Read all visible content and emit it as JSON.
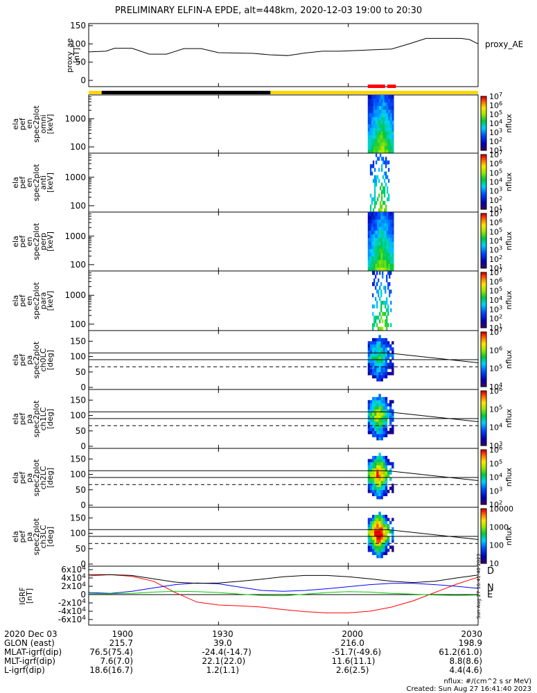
{
  "title": "PRELIMINARY ELFIN-A EPDE, alt=448km, 2020-12-03 19:00 to 20:30",
  "colors": {
    "axis": "#000000",
    "sun_bar": "#ffd700",
    "shadow_bar": "#000000",
    "science_marker": "#ff0000",
    "igrf_d": "#ff0000",
    "igrf_n": "#0000ff",
    "igrf_e": "#00cc00",
    "igrf_total": "#000000"
  },
  "time_ticks": [
    "1900",
    "1930",
    "2000",
    "2030"
  ],
  "orbit_table": {
    "rows": [
      {
        "label": "2020 Dec 03",
        "values": [
          "1900",
          "1930",
          "2000",
          "2030"
        ]
      },
      {
        "label": "GLON (east)",
        "values": [
          "215.7",
          "39.0",
          "216.0",
          "198.9"
        ]
      },
      {
        "label": "MLAT-igrf(dip)",
        "values": [
          "76.5(75.4)",
          "-24.4(-14.7)",
          "-51.7(-49.6)",
          "61.2(61.0)"
        ]
      },
      {
        "label": "MLT-igrf(dip)",
        "values": [
          "7.6(7.0)",
          "22.1(22.0)",
          "11.6(11.1)",
          "8.8(8.6)"
        ]
      },
      {
        "label": "L-igrf(dip)",
        "values": [
          "18.6(16.7)",
          "1.2(1.1)",
          "2.6(2.5)",
          "4.4(4.6)"
        ]
      }
    ]
  },
  "footer": {
    "units": "nflux: #/(cm^2 s sr MeV)",
    "created": "Created: Sun Aug 27 16:41:40 2023"
  },
  "side_stamp": "Sun Aug 27 16:41:40 2023",
  "chart_data": [
    {
      "type": "line",
      "panel": "proxy_ae",
      "ylabel": "proxy_ae [nT]",
      "legend": "proxy_AE",
      "ylim": [
        0,
        150
      ],
      "yticks": [
        "0",
        "50",
        "100",
        "150"
      ],
      "x_minutes": [
        0,
        4,
        6,
        10,
        14,
        18,
        22,
        26,
        30,
        34,
        38,
        42,
        46,
        50,
        54,
        58,
        62,
        66,
        70,
        74,
        78,
        82,
        86,
        88,
        90
      ],
      "values": [
        78,
        80,
        88,
        88,
        72,
        72,
        87,
        87,
        76,
        75,
        74,
        70,
        68,
        75,
        80,
        80,
        82,
        84,
        86,
        100,
        115,
        115,
        115,
        112,
        100
      ]
    },
    {
      "type": "heatmap",
      "panel": "spec2plot_omni",
      "ylabel": "ela pef en spec2plot omni [keV]",
      "y_scale": "log",
      "yticks": [
        "100",
        "1000"
      ],
      "colorbar": {
        "label": "nflux",
        "ticks": [
          "10^1",
          "10^2",
          "10^3",
          "10^4",
          "10^5",
          "10^6",
          "10^7"
        ]
      },
      "data_interval_minutes": [
        64.5,
        70.5
      ]
    },
    {
      "type": "heatmap",
      "panel": "spec2plot_anti",
      "ylabel": "ela pef en spec2plot anti [keV]",
      "y_scale": "log",
      "yticks": [
        "100",
        "1000"
      ],
      "colorbar": {
        "label": "nflux",
        "ticks": [
          "10^1",
          "10^2",
          "10^3",
          "10^4",
          "10^5",
          "10^6",
          "10^7"
        ]
      },
      "data_interval_minutes": [
        65.0,
        69.5
      ]
    },
    {
      "type": "heatmap",
      "panel": "spec2plot_perp",
      "ylabel": "ela pef en spec2plot perp [keV]",
      "y_scale": "log",
      "yticks": [
        "100",
        "1000"
      ],
      "colorbar": {
        "label": "nflux",
        "ticks": [
          "10^1",
          "10^2",
          "10^3",
          "10^4",
          "10^5",
          "10^6",
          "10^7"
        ]
      },
      "data_interval_minutes": [
        64.5,
        70.5
      ]
    },
    {
      "type": "heatmap",
      "panel": "spec2plot_para",
      "ylabel": "ela pef en spec2plot para [keV]",
      "y_scale": "log",
      "yticks": [
        "100",
        "1000"
      ],
      "colorbar": {
        "label": "nflux",
        "ticks": [
          "10^1",
          "10^2",
          "10^3",
          "10^4",
          "10^5",
          "10^6",
          "10^7"
        ]
      },
      "data_interval_minutes": [
        65.5,
        70.0
      ]
    },
    {
      "type": "heatmap",
      "panel": "ch0LC",
      "ylabel": "ela pef pa spec2plot ch0LC [deg]",
      "ylim": [
        0,
        180
      ],
      "yticks": [
        "0",
        "50",
        "100",
        "150"
      ],
      "colorbar": {
        "label": "nflux",
        "ticks": [
          "10^4",
          "10^5",
          "10^6",
          "10^7"
        ]
      },
      "loss_cone_lines_deg": {
        "upper_start": 112,
        "upper_end": 80,
        "lower": 90,
        "dashed": 67
      }
    },
    {
      "type": "heatmap",
      "panel": "ch1LC",
      "ylabel": "ela pef pa spec2plot ch1LC [deg]",
      "ylim": [
        0,
        180
      ],
      "yticks": [
        "0",
        "50",
        "100",
        "150"
      ],
      "colorbar": {
        "label": "nflux",
        "ticks": [
          "10^3",
          "10^4",
          "10^5",
          "10^6"
        ]
      },
      "loss_cone_lines_deg": {
        "upper_start": 112,
        "upper_end": 80,
        "lower": 90,
        "dashed": 67
      }
    },
    {
      "type": "heatmap",
      "panel": "ch2LC",
      "ylabel": "ela pef pa spec2plot ch2LC [deg]",
      "ylim": [
        0,
        180
      ],
      "yticks": [
        "0",
        "50",
        "100",
        "150"
      ],
      "colorbar": {
        "label": "nflux",
        "ticks": [
          "10^2",
          "10^3",
          "10^4",
          "10^5",
          "10^6"
        ]
      },
      "loss_cone_lines_deg": {
        "upper_start": 112,
        "upper_end": 80,
        "lower": 90,
        "dashed": 67
      }
    },
    {
      "type": "heatmap",
      "panel": "ch3LC",
      "ylabel": "ela pef pa spec2plot ch3LC [deg]",
      "ylim": [
        0,
        180
      ],
      "yticks": [
        "0",
        "50",
        "100",
        "150"
      ],
      "colorbar": {
        "label": "nflux",
        "ticks": [
          "10",
          "100",
          "1000",
          "10000"
        ]
      },
      "loss_cone_lines_deg": {
        "upper_start": 112,
        "upper_end": 80,
        "lower": 90,
        "dashed": 67
      }
    },
    {
      "type": "line",
      "panel": "IGRF",
      "ylabel": "IGRF [nT]",
      "ylim": [
        -70000,
        65000
      ],
      "yticks": [
        "6x10^4",
        "4x10^4",
        "2x10^4",
        "0",
        "-2x10^4",
        "-4x10^4",
        "-6x10^4"
      ],
      "x_minutes": [
        0,
        5,
        10,
        15,
        20,
        25,
        30,
        35,
        40,
        45,
        50,
        55,
        60,
        65,
        70,
        75,
        80,
        85,
        90
      ],
      "series": [
        {
          "name": "D",
          "values": [
            45000,
            48000,
            44000,
            32000,
            5000,
            -18000,
            -25000,
            -27000,
            -30000,
            -36000,
            -41000,
            -44000,
            -44000,
            -40000,
            -30000,
            -15000,
            5000,
            25000,
            42000
          ]
        },
        {
          "name": "N",
          "values": [
            5000,
            3000,
            8000,
            16000,
            24000,
            28000,
            26000,
            18000,
            10000,
            8000,
            10000,
            14000,
            19000,
            24000,
            27000,
            27000,
            24000,
            20000,
            15000
          ]
        },
        {
          "name": "E",
          "values": [
            2000,
            2000,
            3000,
            6000,
            8000,
            7000,
            5000,
            1000,
            -2000,
            -3000,
            1000,
            5000,
            7000,
            6000,
            3000,
            1000,
            -1000,
            -2000,
            -1000
          ]
        },
        {
          "name": "total",
          "values": [
            48000,
            48000,
            46000,
            38000,
            30000,
            27000,
            28000,
            32000,
            37000,
            43000,
            46000,
            46000,
            43000,
            38000,
            32000,
            29000,
            32000,
            40000,
            47000
          ]
        }
      ]
    }
  ]
}
